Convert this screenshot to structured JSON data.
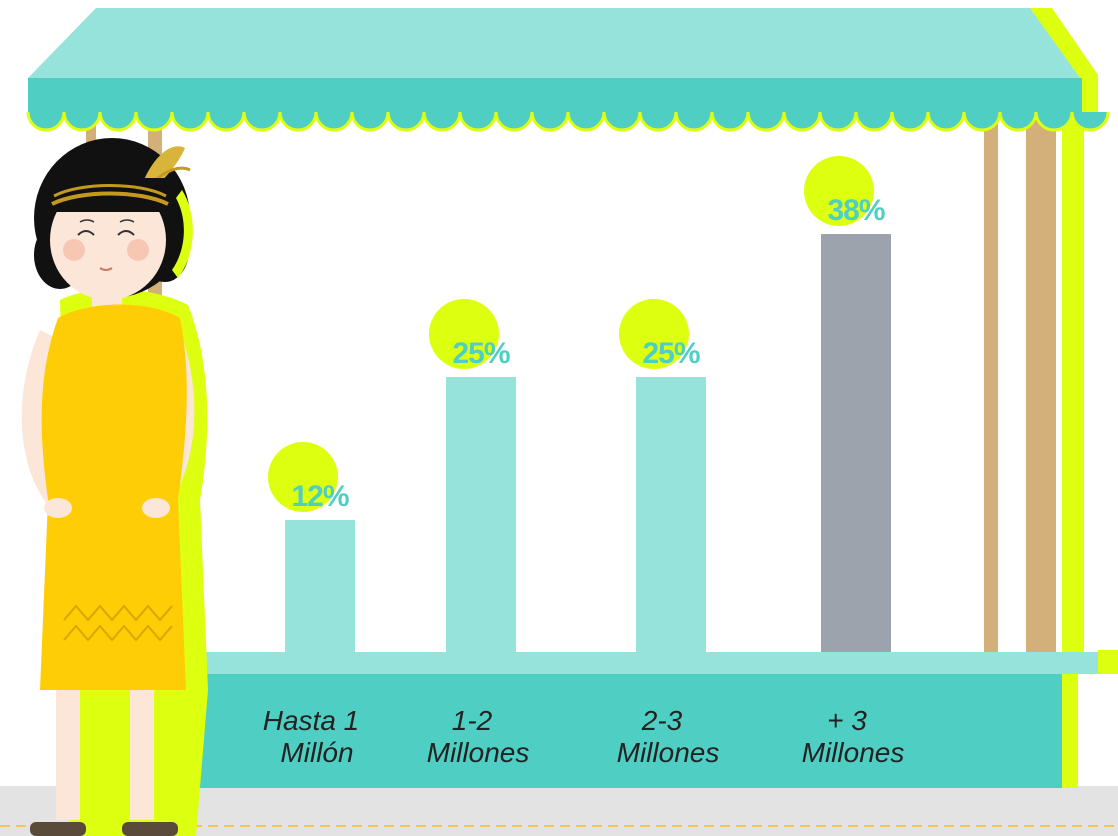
{
  "colors": {
    "awning_dark": "#4fcfc3",
    "awning_light": "#96e3dc",
    "bar_default": "#96e3dc",
    "bar_highlight": "#9ca3ad",
    "accent_lime": "#ddff10",
    "post_tan": "#d3b079",
    "dress_yellow": "#ffcd05",
    "ground": "#e3e3e3",
    "value_text": "#4fcfc3"
  },
  "chart_data": {
    "type": "bar",
    "categories": [
      [
        "Hasta 1",
        "Millón"
      ],
      [
        "1-2",
        "Millones"
      ],
      [
        "2-3",
        "Millones"
      ],
      [
        "+ 3",
        "Millones"
      ]
    ],
    "values": [
      12,
      25,
      25,
      38
    ],
    "value_labels": [
      "12%",
      "25%",
      "25%",
      "38%"
    ],
    "highlight_index": 3,
    "ylim": [
      0,
      38
    ],
    "grid": false,
    "title": "",
    "xlabel": "",
    "ylabel": ""
  }
}
